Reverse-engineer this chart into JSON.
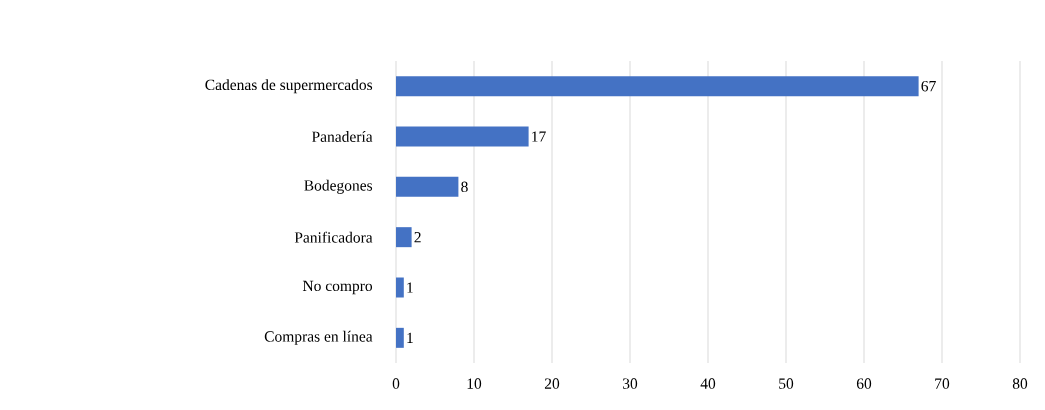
{
  "chart_data": {
    "type": "bar",
    "orientation": "horizontal",
    "categories": [
      "Cadenas de supermercados",
      "Panadería",
      "Bodegones",
      "Panificadora",
      "No compro",
      "Compras en línea"
    ],
    "values": [
      67,
      17,
      8,
      2,
      1,
      1
    ],
    "color": "#4472c4",
    "xlim": [
      0,
      80
    ],
    "xticks": [
      0,
      10,
      20,
      30,
      40,
      50,
      60,
      70,
      80
    ],
    "grid": "x",
    "data_labels": true
  }
}
